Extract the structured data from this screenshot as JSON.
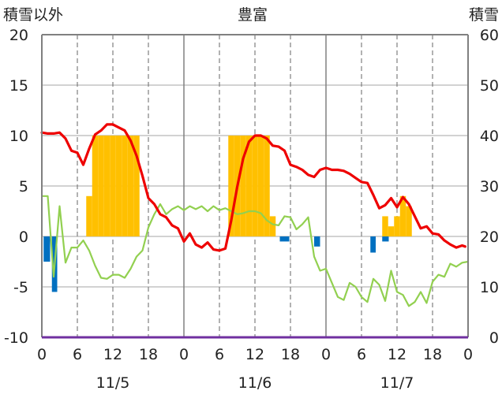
{
  "chart_data": {
    "type": "line",
    "title": "豊富",
    "left_axis_label": "積雪以外",
    "right_axis_label": "積雪",
    "left_ylim": [
      -10,
      20
    ],
    "left_yticks": [
      "20",
      "15",
      "10",
      "5",
      "0",
      "-5",
      "-10"
    ],
    "right_ylim": [
      0,
      60
    ],
    "right_yticks": [
      "60",
      "50",
      "40",
      "30",
      "20",
      "10",
      "0"
    ],
    "x_range_hours": [
      0,
      72
    ],
    "x_tick_labels": [
      "0",
      "6",
      "12",
      "18",
      "0",
      "6",
      "12",
      "18",
      "0",
      "6",
      "12",
      "18",
      "0"
    ],
    "date_labels": [
      "11/5",
      "11/6",
      "11/7"
    ],
    "grid": true,
    "colors": {
      "temperature": "#ee0000",
      "humidity_line": "#92d050",
      "snowfall_bar": "#ffc000",
      "precip_bar": "#0070c0",
      "baseline": "#7030a0",
      "axes": "#808080"
    },
    "temperature_x": [
      0,
      1,
      2,
      3,
      4,
      5,
      6,
      7,
      8,
      9,
      10,
      11,
      12,
      13,
      14,
      15,
      16,
      17,
      18,
      19,
      20,
      21,
      22,
      23,
      24,
      25,
      26,
      27,
      28,
      29,
      30,
      31,
      32,
      33,
      34,
      35,
      36,
      37,
      38,
      39,
      40,
      41,
      42,
      43,
      44,
      45,
      46,
      47,
      48,
      49,
      50,
      51,
      52,
      53,
      54,
      55,
      56,
      57,
      58,
      59,
      60,
      61,
      62,
      63,
      64,
      65,
      66,
      67,
      68,
      69,
      70,
      71,
      71.5
    ],
    "temperature_y": [
      10.3,
      10.2,
      10.2,
      10.3,
      9.7,
      8.5,
      8.3,
      7.1,
      8.7,
      10.1,
      10.5,
      11.1,
      11.1,
      10.8,
      10.5,
      9.5,
      8.0,
      6.0,
      3.8,
      3.2,
      2.2,
      1.9,
      1.1,
      0.8,
      -0.5,
      0.3,
      -0.8,
      -1.1,
      -0.6,
      -1.3,
      -1.4,
      -1.2,
      1.6,
      4.9,
      7.7,
      9.4,
      10.0,
      10.0,
      9.7,
      9.0,
      8.9,
      8.5,
      7.1,
      6.9,
      6.6,
      6.1,
      5.9,
      6.6,
      6.8,
      6.6,
      6.6,
      6.5,
      6.2,
      5.8,
      5.4,
      5.3,
      4.1,
      2.8,
      3.1,
      3.8,
      2.9,
      3.9,
      3.2,
      2.0,
      0.8,
      1.0,
      0.3,
      0.2,
      -0.4,
      -0.8,
      -1.1,
      -0.9,
      -1.0
    ],
    "humidity_x": [
      0,
      0.5,
      1,
      2,
      3,
      4,
      5,
      6,
      7,
      8,
      9,
      10,
      11,
      12,
      13,
      14,
      15,
      16,
      17,
      18,
      19,
      20,
      21,
      22,
      23,
      24,
      25,
      26,
      27,
      28,
      29,
      30,
      31,
      32,
      33,
      34,
      35,
      36,
      37,
      38,
      39,
      40,
      41,
      42,
      43,
      44,
      45,
      46,
      47,
      48,
      49,
      50,
      51,
      52,
      53,
      54,
      55,
      56,
      57,
      58,
      59,
      60,
      61,
      62,
      63,
      64,
      65,
      66,
      67,
      68,
      69,
      70,
      71,
      72
    ],
    "humidity_y": [
      4.0,
      4.0,
      4.0,
      -4.0,
      3.0,
      -2.6,
      -1.1,
      -1.1,
      -0.4,
      -1.4,
      -2.9,
      -4.1,
      -4.2,
      -3.8,
      -3.8,
      -4.1,
      -3.2,
      -2.0,
      -1.4,
      0.9,
      2.2,
      3.2,
      2.2,
      2.7,
      3.0,
      2.6,
      3.0,
      2.7,
      3.0,
      2.5,
      3.0,
      2.6,
      2.8,
      2.5,
      2.2,
      2.3,
      2.5,
      2.5,
      2.3,
      1.6,
      1.2,
      1.1,
      2.0,
      1.9,
      0.7,
      1.2,
      1.9,
      -2.0,
      -3.4,
      -3.2,
      -4.6,
      -6.0,
      -6.3,
      -4.6,
      -5.0,
      -6.0,
      -6.5,
      -4.2,
      -4.8,
      -6.4,
      -3.4,
      -5.5,
      -5.8,
      -6.9,
      -6.5,
      -5.5,
      -6.6,
      -4.5,
      -3.8,
      -4.0,
      -2.7,
      -3.0,
      -2.6,
      -2.5
    ],
    "snowfall_x_start": [
      7.5,
      8.5,
      9.5,
      10.5,
      11.5,
      12.5,
      13.5,
      14.5,
      15.5,
      31.5,
      32.5,
      33.5,
      34.5,
      35.5,
      36.5,
      37.5,
      38.5,
      57.5,
      58.5,
      59.5,
      60.5,
      61.5
    ],
    "snowfall_x_end": [
      8.5,
      9.5,
      10.5,
      11.5,
      12.5,
      13.5,
      14.5,
      15.5,
      16.5,
      32.5,
      33.5,
      34.5,
      35.5,
      36.5,
      37.5,
      38.5,
      39.5,
      58.5,
      59.5,
      60.5,
      61.5,
      62.5
    ],
    "snowfall_values": [
      4.0,
      10.0,
      10.0,
      10.0,
      10.0,
      10.0,
      10.0,
      10.0,
      10.0,
      10.0,
      10.0,
      10.0,
      10.0,
      10.0,
      10.0,
      10.0,
      2.0,
      2.0,
      1.0,
      2.0,
      4.0,
      3.0
    ],
    "precip_x_start": [
      0.3,
      1.7,
      40.2,
      46.0,
      55.5,
      57.5
    ],
    "precip_x_end": [
      1.4,
      2.6,
      41.8,
      47.0,
      56.4,
      58.6
    ],
    "precip_values": [
      -2.5,
      -5.5,
      -0.5,
      -1.0,
      -1.6,
      -0.5
    ]
  }
}
